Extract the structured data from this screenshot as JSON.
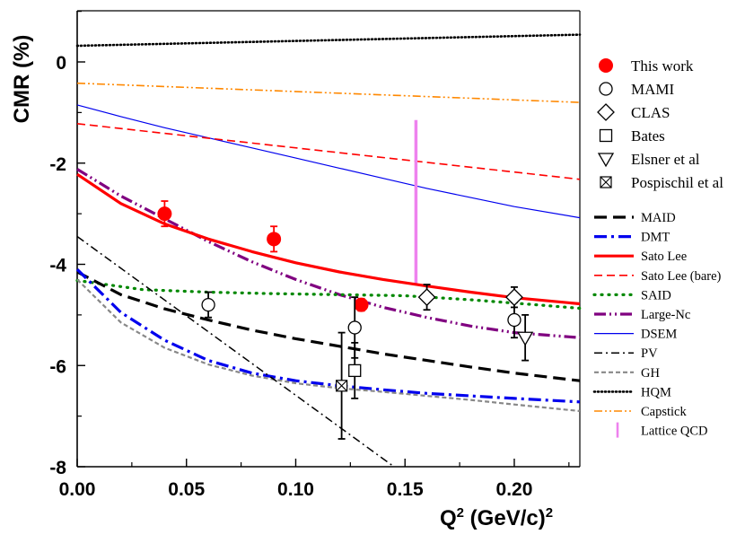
{
  "chart_data": {
    "type": "scatter",
    "title": "",
    "xlabel": {
      "base": "Q",
      "sup": "2",
      "mid": " (GeV/c)",
      "sup2": "2"
    },
    "ylabel": "CMR (%)",
    "xlim": [
      0.0,
      0.23
    ],
    "ylim": [
      -8,
      1.1
    ],
    "xticks": [
      0.0,
      0.05,
      0.1,
      0.15,
      0.2
    ],
    "xtick_labels": [
      "0.00",
      "0.05",
      "0.10",
      "0.15",
      "0.20"
    ],
    "yticks": [
      0,
      -2,
      -4,
      -6,
      -8
    ],
    "ytick_labels": [
      "0",
      "-2",
      "-4",
      "-6",
      "-8"
    ],
    "legend_markers": [
      {
        "label": "This work",
        "marker": "filled-circle",
        "color": "#ff0000"
      },
      {
        "label": "MAMI",
        "marker": "open-circle",
        "color": "#000000"
      },
      {
        "label": "CLAS",
        "marker": "open-diamond",
        "color": "#000000"
      },
      {
        "label": "Bates",
        "marker": "open-square",
        "color": "#000000"
      },
      {
        "label": "Elsner et al",
        "marker": "open-triangle-down",
        "color": "#000000"
      },
      {
        "label": "Pospischil et al",
        "marker": "crossed-square",
        "color": "#000000"
      }
    ],
    "legend_lines": [
      {
        "label": "MAID",
        "color": "#000000",
        "style": "dash",
        "width": 3.2
      },
      {
        "label": "DMT",
        "color": "#0000ee",
        "style": "dashdot",
        "width": 3.2
      },
      {
        "label": "Sato Lee",
        "color": "#ff0000",
        "style": "solid",
        "width": 3.2
      },
      {
        "label": "Sato Lee (bare)",
        "color": "#ff0000",
        "style": "dash-thin",
        "width": 1.6
      },
      {
        "label": "SAID",
        "color": "#008800",
        "style": "dot",
        "width": 3.2
      },
      {
        "label": "Large-Nc",
        "color": "#800080",
        "style": "dashdotdot",
        "width": 3.2
      },
      {
        "label": "DSEM",
        "color": "#0000ee",
        "style": "solid",
        "width": 1.2
      },
      {
        "label": "PV",
        "color": "#000000",
        "style": "dashdot-thin",
        "width": 1.5
      },
      {
        "label": "GH",
        "color": "#888888",
        "style": "shortdash",
        "width": 2.2
      },
      {
        "label": "HQM",
        "color": "#000000",
        "style": "dot-dense",
        "width": 2.6
      },
      {
        "label": "Capstick",
        "color": "#ff8800",
        "style": "dashdotdot-thin",
        "width": 1.6
      },
      {
        "label": "Lattice QCD",
        "color": "#ee82ee",
        "style": "vbar",
        "width": 3.5
      }
    ],
    "series": [
      {
        "name": "HQM",
        "x": [
          0.0,
          0.23
        ],
        "y": [
          0.32,
          0.54
        ]
      },
      {
        "name": "Capstick",
        "x": [
          0.0,
          0.23
        ],
        "y": [
          -0.42,
          -0.8
        ]
      },
      {
        "name": "DSEM",
        "x": [
          0.0,
          0.02,
          0.04,
          0.06,
          0.08,
          0.1,
          0.12,
          0.14,
          0.16,
          0.18,
          0.2,
          0.23
        ],
        "y": [
          -0.85,
          -1.08,
          -1.3,
          -1.5,
          -1.7,
          -1.9,
          -2.1,
          -2.3,
          -2.5,
          -2.68,
          -2.86,
          -3.08
        ]
      },
      {
        "name": "Sato Lee (bare)",
        "x": [
          0.0,
          0.23
        ],
        "y": [
          -1.22,
          -2.32
        ]
      },
      {
        "name": "Lattice QCD",
        "x": [
          0.155,
          0.155
        ],
        "y": [
          -1.15,
          -4.4
        ]
      },
      {
        "name": "Large-Nc",
        "x": [
          0.0,
          0.02,
          0.04,
          0.06,
          0.08,
          0.1,
          0.12,
          0.14,
          0.16,
          0.18,
          0.2,
          0.23
        ],
        "y": [
          -2.12,
          -2.65,
          -3.1,
          -3.55,
          -3.95,
          -4.3,
          -4.6,
          -4.85,
          -5.05,
          -5.22,
          -5.35,
          -5.45
        ]
      },
      {
        "name": "Sato Lee",
        "x": [
          0.0,
          0.02,
          0.04,
          0.06,
          0.08,
          0.1,
          0.12,
          0.14,
          0.16,
          0.18,
          0.2,
          0.23
        ],
        "y": [
          -2.22,
          -2.8,
          -3.2,
          -3.5,
          -3.75,
          -3.97,
          -4.15,
          -4.3,
          -4.43,
          -4.55,
          -4.66,
          -4.78
        ]
      },
      {
        "name": "SAID",
        "x": [
          0.0,
          0.03,
          0.06,
          0.09,
          0.12,
          0.15,
          0.18,
          0.21,
          0.23
        ],
        "y": [
          -4.32,
          -4.5,
          -4.55,
          -4.58,
          -4.6,
          -4.62,
          -4.7,
          -4.8,
          -4.87
        ]
      },
      {
        "name": "MAID",
        "x": [
          0.0,
          0.02,
          0.04,
          0.06,
          0.08,
          0.1,
          0.12,
          0.14,
          0.16,
          0.18,
          0.2,
          0.23
        ],
        "y": [
          -4.15,
          -4.6,
          -4.88,
          -5.1,
          -5.3,
          -5.47,
          -5.62,
          -5.77,
          -5.9,
          -6.03,
          -6.15,
          -6.3
        ]
      },
      {
        "name": "DMT",
        "x": [
          0.0,
          0.02,
          0.04,
          0.06,
          0.08,
          0.1,
          0.12,
          0.14,
          0.16,
          0.18,
          0.2,
          0.23
        ],
        "y": [
          -4.1,
          -4.95,
          -5.5,
          -5.9,
          -6.15,
          -6.3,
          -6.4,
          -6.48,
          -6.55,
          -6.6,
          -6.65,
          -6.72
        ]
      },
      {
        "name": "GH",
        "x": [
          0.0,
          0.02,
          0.04,
          0.06,
          0.08,
          0.1,
          0.12,
          0.14,
          0.16,
          0.18,
          0.2,
          0.23
        ],
        "y": [
          -4.3,
          -5.15,
          -5.65,
          -5.98,
          -6.2,
          -6.35,
          -6.45,
          -6.52,
          -6.6,
          -6.68,
          -6.77,
          -6.9
        ]
      },
      {
        "name": "PV",
        "x": [
          0.0,
          0.145
        ],
        "y": [
          -3.45,
          -8.0
        ]
      }
    ],
    "points": [
      {
        "set": "This work",
        "marker": "filled-circle",
        "x": 0.04,
        "y": -3.0,
        "err": 0.25
      },
      {
        "set": "This work",
        "marker": "filled-circle",
        "x": 0.09,
        "y": -3.5,
        "err": 0.25
      },
      {
        "set": "This work",
        "marker": "filled-circle",
        "x": 0.13,
        "y": -4.8,
        "err": 0.12
      },
      {
        "set": "MAMI",
        "marker": "open-circle",
        "x": 0.06,
        "y": -4.8,
        "err": 0.25
      },
      {
        "set": "MAMI",
        "marker": "open-circle",
        "x": 0.127,
        "y": -5.25,
        "err": 0.6
      },
      {
        "set": "MAMI",
        "marker": "open-circle",
        "x": 0.2,
        "y": -5.1,
        "err": 0.35
      },
      {
        "set": "CLAS",
        "marker": "open-diamond",
        "x": 0.16,
        "y": -4.65,
        "err": 0.25
      },
      {
        "set": "CLAS",
        "marker": "open-diamond",
        "x": 0.2,
        "y": -4.65,
        "err": 0.2
      },
      {
        "set": "Bates",
        "marker": "open-square",
        "x": 0.127,
        "y": -6.1,
        "err": 0.55
      },
      {
        "set": "Elsner et al",
        "marker": "open-triangle-down",
        "x": 0.205,
        "y": -5.45,
        "err": 0.45
      },
      {
        "set": "Pospischil et al",
        "marker": "crossed-square",
        "x": 0.121,
        "y": -6.4,
        "err": 1.05
      }
    ]
  }
}
